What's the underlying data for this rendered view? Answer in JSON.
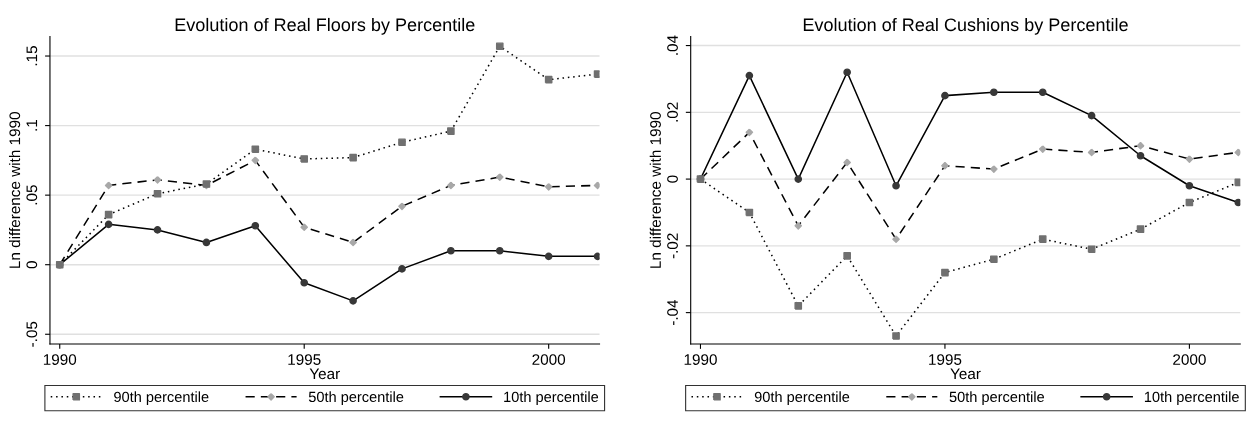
{
  "chart_data": [
    {
      "type": "line",
      "title": "Evolution of Real Floors by Percentile",
      "xlabel": "Year",
      "ylabel": "Ln difference with 1990",
      "x": [
        1990,
        1991,
        1992,
        1993,
        1994,
        1995,
        1996,
        1997,
        1998,
        1999,
        2000,
        2001
      ],
      "xlim": [
        1989.8,
        2001.04
      ],
      "xticks": [
        1990,
        1995,
        2000
      ],
      "ylim": [
        -0.057,
        0.164
      ],
      "yticks": [
        {
          "value": -0.05,
          "label": "-.05"
        },
        {
          "value": 0,
          "label": "0"
        },
        {
          "value": 0.05,
          "label": ".05"
        },
        {
          "value": 0.1,
          "label": ".1"
        },
        {
          "value": 0.15,
          "label": ".15"
        }
      ],
      "grid": "y",
      "legend": "bottom",
      "series": [
        {
          "name": "90th percentile",
          "color": "#707070",
          "line_style": "dotted",
          "marker": "square",
          "values": [
            0,
            0.036,
            0.051,
            0.058,
            0.083,
            0.076,
            0.077,
            0.088,
            0.096,
            0.157,
            0.133,
            0.137
          ]
        },
        {
          "name": "50th percentile",
          "color": "#a8a8a8",
          "line_style": "dashed",
          "marker": "diamond",
          "values": [
            0,
            0.057,
            0.061,
            0.057,
            0.075,
            0.027,
            0.016,
            0.042,
            0.057,
            0.063,
            0.056,
            0.057
          ]
        },
        {
          "name": "10th percentile",
          "color": "#383838",
          "line_style": "solid",
          "marker": "circle",
          "values": [
            0,
            0.029,
            0.025,
            0.016,
            0.028,
            -0.013,
            -0.026,
            -0.003,
            0.01,
            0.01,
            0.006,
            0.006
          ]
        }
      ]
    },
    {
      "type": "line",
      "title": "Evolution of Real Cushions by Percentile",
      "xlabel": "Year",
      "ylabel": "Ln difference with 1990",
      "x": [
        1990,
        1991,
        1992,
        1993,
        1994,
        1995,
        1996,
        1997,
        1998,
        1999,
        2000,
        2001
      ],
      "xlim": [
        1989.8,
        2001.04
      ],
      "xticks": [
        1990,
        1995,
        2000
      ],
      "ylim": [
        -0.0494,
        0.0427
      ],
      "yticks": [
        {
          "value": -0.04,
          "label": "-.04"
        },
        {
          "value": -0.02,
          "label": "-.02"
        },
        {
          "value": 0,
          "label": "0"
        },
        {
          "value": 0.02,
          "label": ".02"
        },
        {
          "value": 0.04,
          "label": ".04"
        }
      ],
      "grid": "y",
      "legend": "bottom",
      "series": [
        {
          "name": "90th percentile",
          "color": "#707070",
          "line_style": "dotted",
          "marker": "square",
          "values": [
            0,
            -0.01,
            -0.038,
            -0.023,
            -0.047,
            -0.028,
            -0.024,
            -0.018,
            -0.021,
            -0.015,
            -0.007,
            -0.001
          ]
        },
        {
          "name": "50th percentile",
          "color": "#a8a8a8",
          "line_style": "dashed",
          "marker": "diamond",
          "values": [
            0,
            0.014,
            -0.014,
            0.005,
            -0.018,
            0.004,
            0.003,
            0.009,
            0.008,
            0.01,
            0.006,
            0.008
          ]
        },
        {
          "name": "10th percentile",
          "color": "#383838",
          "line_style": "solid",
          "marker": "circle",
          "values": [
            0,
            0.031,
            0,
            0.032,
            -0.002,
            0.025,
            0.026,
            0.026,
            0.019,
            0.007,
            -0.002,
            -0.007
          ]
        }
      ]
    }
  ]
}
